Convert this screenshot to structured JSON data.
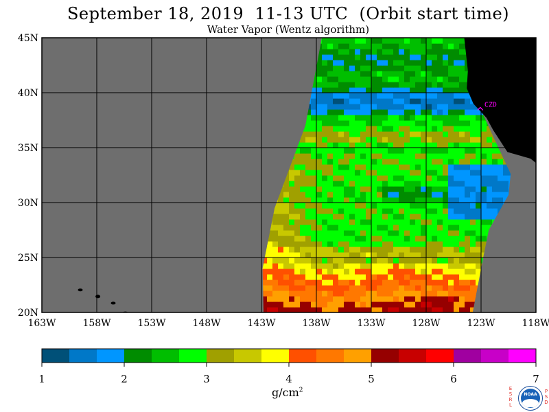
{
  "header": {
    "title": "September 18, 2019  11-13 UTC  (Orbit start time)",
    "subtitle": "Water Vapor (Wentz algorithm)"
  },
  "map": {
    "lat_labels": [
      "45N",
      "40N",
      "35N",
      "30N",
      "25N",
      "20N"
    ],
    "lon_labels": [
      "163W",
      "158W",
      "153W",
      "148W",
      "143W",
      "138W",
      "133W",
      "128W",
      "123W",
      "118W"
    ],
    "lon_range": [
      -163,
      -118
    ],
    "lat_range": [
      20,
      45
    ],
    "station_label": "CZD",
    "colors": {
      "no_data": "#6e6e6e",
      "land": "#000000",
      "grid": "#000000",
      "station": "#ff00ff"
    }
  },
  "colorbar": {
    "tick_labels": [
      "1",
      "2",
      "3",
      "4",
      "5",
      "6",
      "7"
    ],
    "range": [
      1,
      7
    ],
    "colors": [
      "#005078",
      "#0078c8",
      "#0096ff",
      "#008c00",
      "#00be00",
      "#00ff00",
      "#a0a000",
      "#c8c800",
      "#ffff00",
      "#ff5000",
      "#ff7800",
      "#ffa000",
      "#960000",
      "#c80000",
      "#ff0000",
      "#a000a0",
      "#c800c8",
      "#ff00ff"
    ],
    "units": "g/cm",
    "units_sup": "2"
  },
  "logo": {
    "left_letters": "ESRL",
    "right_letters": "PSD",
    "name": "NOAA"
  }
}
